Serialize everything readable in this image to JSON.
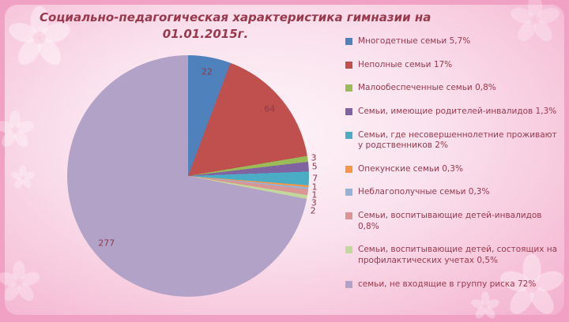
{
  "title": {
    "line1": "Социально-педагогическая характеристика гимназии на",
    "line2": "01.01.2015г."
  },
  "colors": {
    "background": "#f1a2c4",
    "text": "#99394e"
  },
  "chart_data": {
    "type": "pie",
    "title": "Социально-педагогическая характеристика гимназии на 01.01.2015г.",
    "legend_position": "right",
    "start_angle_deg": 0,
    "labels": [
      "Многодетные семьи 5,7%",
      "Неполные семьи 17%",
      "Малообеспеченные семьи 0,8%",
      "Семьи, имеющие родителей-инвалидов 1,3%",
      "Семьи, где несовершеннолетние проживают у родственников 2%",
      "Опекунские семьи 0,3%",
      "Неблагополучные семьи 0,3%",
      "Семьи, воспитывающие детей-инвалидов 0,8%",
      "Семьи, воспитывающие детей, состоящих на профилактических учетах 0,5%",
      "семьи, не входящие в группу риска 72%"
    ],
    "values": [
      22,
      64,
      3,
      5,
      7,
      1,
      1,
      3,
      2,
      277
    ],
    "percent_labels": [
      "5,7%",
      "17%",
      "0,8%",
      "1,3%",
      "2%",
      "0,3%",
      "0,3%",
      "0,8%",
      "0,5%",
      "72%"
    ],
    "data_labels": [
      "22",
      "64",
      "3",
      "5",
      "7",
      "1",
      "1",
      "3",
      "2",
      "277"
    ],
    "colors": [
      "#4f81bd",
      "#c0504d",
      "#9bbb59",
      "#8064a2",
      "#4bacc6",
      "#f79646",
      "#95b3d7",
      "#d99694",
      "#c3d69b",
      "#b3a2c7"
    ]
  }
}
